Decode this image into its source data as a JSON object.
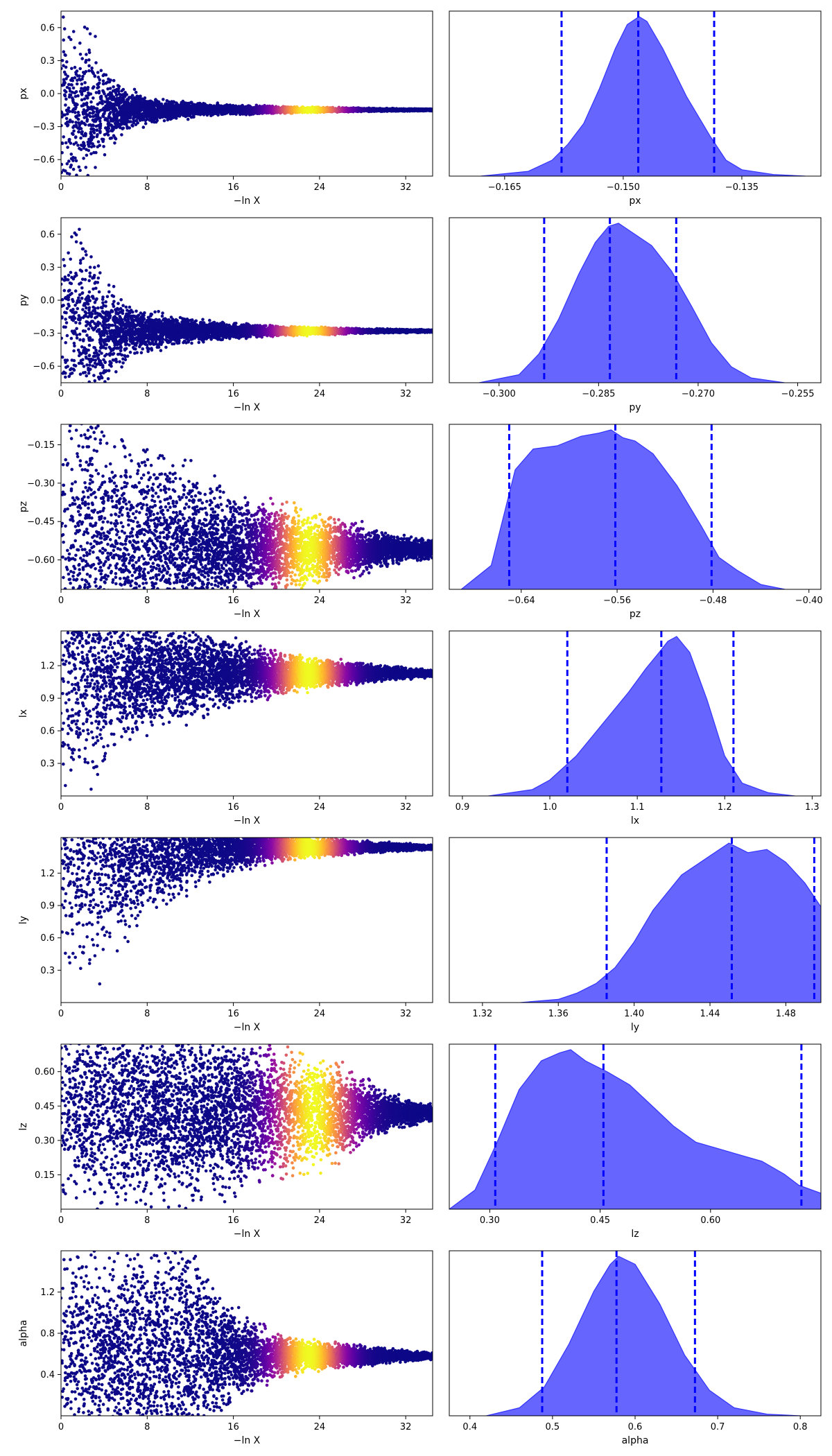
{
  "colors": {
    "posterior_fill": "#6666ff",
    "posterior_edge": "#3333ff",
    "quantile_line": "#0000ff",
    "trace_base": "#0d0887"
  },
  "chart_data": [
    {
      "type": "scatter",
      "param": "px",
      "ylabel": "px",
      "xlabel": "−ln X",
      "xlim": [
        0,
        34.5
      ],
      "ylim": [
        -0.75,
        0.75
      ],
      "xticks": [
        0,
        8,
        16,
        24,
        32
      ],
      "yticks": [
        -0.6,
        -0.3,
        0.0,
        0.3,
        0.6
      ],
      "ytick_labels": [
        "−0.6",
        "−0.3",
        "0.0",
        "0.3",
        "0.6"
      ],
      "envelope": {
        "x": [
          0,
          1,
          2,
          3,
          4,
          5,
          6,
          8,
          10,
          13,
          16,
          20,
          24,
          28,
          32,
          34.5
        ],
        "half": [
          0.75,
          0.75,
          0.7,
          0.55,
          0.38,
          0.26,
          0.18,
          0.11,
          0.08,
          0.055,
          0.04,
          0.028,
          0.02,
          0.015,
          0.01,
          0.008
        ]
      },
      "center": -0.148,
      "color_peak": 23,
      "color_width": 3
    },
    {
      "type": "area",
      "param": "px",
      "xlabel": "px",
      "xlim": [
        -0.172,
        -0.125
      ],
      "xticks": [
        -0.165,
        -0.15,
        -0.135
      ],
      "xtick_labels": [
        "−0.165",
        "−0.150",
        "−0.135"
      ],
      "density": {
        "x": [
          -0.168,
          -0.162,
          -0.159,
          -0.157,
          -0.155,
          -0.153,
          -0.151,
          -0.1495,
          -0.148,
          -0.147,
          -0.145,
          -0.142,
          -0.139,
          -0.137,
          -0.135,
          -0.131,
          -0.127
        ],
        "y": [
          0.0,
          0.03,
          0.1,
          0.2,
          0.33,
          0.55,
          0.8,
          0.95,
          1.0,
          0.97,
          0.8,
          0.5,
          0.25,
          0.1,
          0.04,
          0.01,
          0.0
        ]
      },
      "quantiles": [
        -0.1578,
        -0.1481,
        -0.1385
      ]
    },
    {
      "type": "scatter",
      "param": "py",
      "ylabel": "py",
      "xlabel": "−ln X",
      "xlim": [
        0,
        34.5
      ],
      "ylim": [
        -0.75,
        0.75
      ],
      "xticks": [
        0,
        8,
        16,
        24,
        32
      ],
      "yticks": [
        -0.6,
        -0.3,
        0.0,
        0.3,
        0.6
      ],
      "ytick_labels": [
        "−0.6",
        "−0.3",
        "0.0",
        "0.3",
        "0.6"
      ],
      "envelope": {
        "x": [
          0,
          1,
          2,
          3,
          4,
          5,
          6,
          8,
          10,
          13,
          16,
          20,
          24,
          28,
          32,
          34.5
        ],
        "half": [
          1.0,
          1.0,
          0.9,
          0.7,
          0.45,
          0.32,
          0.24,
          0.16,
          0.12,
          0.085,
          0.06,
          0.042,
          0.03,
          0.02,
          0.014,
          0.01
        ]
      },
      "center": -0.28,
      "color_peak": 23,
      "color_width": 3
    },
    {
      "type": "area",
      "param": "py",
      "xlabel": "py",
      "xlim": [
        -0.3075,
        -0.2515
      ],
      "xticks": [
        -0.3,
        -0.285,
        -0.27,
        -0.255
      ],
      "xtick_labels": [
        "−0.300",
        "−0.285",
        "−0.270",
        "−0.255"
      ],
      "density": {
        "x": [
          -0.303,
          -0.297,
          -0.294,
          -0.291,
          -0.288,
          -0.2855,
          -0.2835,
          -0.282,
          -0.2795,
          -0.277,
          -0.274,
          -0.271,
          -0.268,
          -0.265,
          -0.262,
          -0.257
        ],
        "y": [
          0.0,
          0.05,
          0.18,
          0.4,
          0.68,
          0.88,
          0.98,
          1.0,
          0.93,
          0.86,
          0.7,
          0.48,
          0.25,
          0.1,
          0.03,
          0.0
        ]
      },
      "quantiles": [
        -0.2932,
        -0.2833,
        -0.2733
      ]
    },
    {
      "type": "scatter",
      "param": "pz",
      "ylabel": "pz",
      "xlabel": "−ln X",
      "xlim": [
        0,
        34.5
      ],
      "ylim": [
        -0.715,
        -0.07
      ],
      "xticks": [
        0,
        8,
        16,
        24,
        32
      ],
      "yticks": [
        -0.6,
        -0.45,
        -0.3,
        -0.15
      ],
      "ytick_labels": [
        "−0.60",
        "−0.45",
        "−0.30",
        "−0.15"
      ],
      "envelope": {
        "x": [
          0,
          2,
          5,
          8,
          12,
          16,
          20,
          24,
          28,
          32,
          34.5
        ],
        "half": [
          0.7,
          0.58,
          0.46,
          0.38,
          0.28,
          0.2,
          0.16,
          0.12,
          0.08,
          0.04,
          0.03
        ]
      },
      "center": -0.56,
      "color_peak": 23,
      "color_width": 3.2
    },
    {
      "type": "area",
      "param": "pz",
      "xlabel": "pz",
      "xlim": [
        -0.7,
        -0.39
      ],
      "xticks": [
        -0.64,
        -0.56,
        -0.48,
        -0.4
      ],
      "xtick_labels": [
        "−0.64",
        "−0.56",
        "−0.48",
        "−0.40"
      ],
      "density": {
        "x": [
          -0.69,
          -0.665,
          -0.655,
          -0.645,
          -0.63,
          -0.61,
          -0.59,
          -0.575,
          -0.565,
          -0.555,
          -0.545,
          -0.53,
          -0.51,
          -0.49,
          -0.475,
          -0.46,
          -0.44,
          -0.42
        ],
        "y": [
          0.0,
          0.15,
          0.45,
          0.75,
          0.88,
          0.9,
          0.96,
          0.98,
          1.0,
          0.95,
          0.93,
          0.85,
          0.65,
          0.4,
          0.2,
          0.12,
          0.03,
          0.0
        ]
      },
      "quantiles": [
        -0.65,
        -0.5615,
        -0.4812
      ]
    },
    {
      "type": "scatter",
      "param": "lx",
      "ylabel": "lx",
      "xlabel": "−ln X",
      "xlim": [
        0,
        34.5
      ],
      "ylim": [
        0.0,
        1.52
      ],
      "xticks": [
        0,
        8,
        16,
        24,
        32
      ],
      "yticks": [
        0.3,
        0.6,
        0.9,
        1.2
      ],
      "ytick_labels": [
        "0.3",
        "0.6",
        "0.9",
        "1.2"
      ],
      "envelope": {
        "x": [
          0,
          2,
          5,
          8,
          12,
          16,
          20,
          24,
          28,
          32,
          34.5
        ],
        "half": [
          1.2,
          1.0,
          0.7,
          0.5,
          0.36,
          0.26,
          0.18,
          0.12,
          0.08,
          0.045,
          0.03
        ]
      },
      "center": 1.13,
      "color_peak": 23,
      "color_width": 3
    },
    {
      "type": "area",
      "param": "lx",
      "xlabel": "lx",
      "xlim": [
        0.885,
        1.31
      ],
      "xticks": [
        0.9,
        1.0,
        1.1,
        1.2,
        1.3
      ],
      "xtick_labels": [
        "0.9",
        "1.0",
        "1.1",
        "1.2",
        "1.3"
      ],
      "density": {
        "x": [
          0.93,
          0.98,
          1.0,
          1.03,
          1.06,
          1.09,
          1.11,
          1.125,
          1.135,
          1.145,
          1.16,
          1.18,
          1.2,
          1.22,
          1.25,
          1.28
        ],
        "y": [
          0.0,
          0.04,
          0.1,
          0.25,
          0.45,
          0.65,
          0.8,
          0.9,
          0.97,
          1.0,
          0.9,
          0.6,
          0.25,
          0.08,
          0.02,
          0.0
        ]
      },
      "quantiles": [
        1.02,
        1.1275,
        1.21
      ]
    },
    {
      "type": "scatter",
      "param": "ly",
      "ylabel": "ly",
      "xlabel": "−ln X",
      "xlim": [
        0,
        34.5
      ],
      "ylim": [
        0.0,
        1.53
      ],
      "xticks": [
        0,
        8,
        16,
        24,
        32
      ],
      "yticks": [
        0.3,
        0.6,
        0.9,
        1.2
      ],
      "ytick_labels": [
        "0.3",
        "0.6",
        "0.9",
        "1.2"
      ],
      "envelope": {
        "x": [
          0,
          2,
          5,
          8,
          12,
          16,
          20,
          24,
          28,
          32,
          34.5
        ],
        "half": [
          1.3,
          1.1,
          0.8,
          0.58,
          0.36,
          0.2,
          0.12,
          0.08,
          0.05,
          0.03,
          0.02
        ]
      },
      "center": 1.44,
      "color_peak": 23,
      "color_width": 3
    },
    {
      "type": "area",
      "param": "ly",
      "xlabel": "ly",
      "xlim": [
        1.3025,
        1.4985
      ],
      "xticks": [
        1.32,
        1.36,
        1.4,
        1.44,
        1.48
      ],
      "xtick_labels": [
        "1.32",
        "1.36",
        "1.40",
        "1.44",
        "1.48"
      ],
      "density": {
        "x": [
          1.34,
          1.36,
          1.37,
          1.38,
          1.39,
          1.4,
          1.41,
          1.425,
          1.44,
          1.45,
          1.46,
          1.47,
          1.48,
          1.49,
          1.4985
        ],
        "y": [
          0.0,
          0.02,
          0.06,
          0.12,
          0.22,
          0.38,
          0.58,
          0.8,
          0.92,
          1.0,
          0.94,
          0.96,
          0.88,
          0.75,
          0.6
        ]
      },
      "quantiles": [
        1.3855,
        1.4515,
        1.495
      ]
    },
    {
      "type": "scatter",
      "param": "lz",
      "ylabel": "lz",
      "xlabel": "−ln X",
      "xlim": [
        0,
        34.5
      ],
      "ylim": [
        0.0,
        0.72
      ],
      "xticks": [
        0,
        8,
        16,
        24,
        32
      ],
      "yticks": [
        0.15,
        0.3,
        0.45,
        0.6
      ],
      "ytick_labels": [
        "0.15",
        "0.30",
        "0.45",
        "0.60"
      ],
      "envelope": {
        "x": [
          0,
          5,
          10,
          16,
          20,
          24,
          28,
          32,
          34.5
        ],
        "half": [
          0.45,
          0.4,
          0.36,
          0.3,
          0.26,
          0.21,
          0.13,
          0.05,
          0.03
        ]
      },
      "center": 0.42,
      "color_peak": 23.5,
      "color_width": 3.5
    },
    {
      "type": "area",
      "param": "lz",
      "xlabel": "lz",
      "xlim": [
        0.245,
        0.75
      ],
      "xticks": [
        0.3,
        0.45,
        0.6
      ],
      "xtick_labels": [
        "0.30",
        "0.45",
        "0.60"
      ],
      "density": {
        "x": [
          0.245,
          0.28,
          0.31,
          0.34,
          0.37,
          0.395,
          0.41,
          0.43,
          0.46,
          0.49,
          0.52,
          0.55,
          0.58,
          0.61,
          0.64,
          0.67,
          0.7,
          0.72,
          0.75
        ],
        "y": [
          0.0,
          0.12,
          0.42,
          0.75,
          0.93,
          0.98,
          1.0,
          0.93,
          0.86,
          0.78,
          0.65,
          0.52,
          0.42,
          0.38,
          0.34,
          0.3,
          0.22,
          0.15,
          0.1
        ]
      },
      "quantiles": [
        0.3075,
        0.4545,
        0.7235
      ]
    },
    {
      "type": "scatter",
      "param": "alpha",
      "ylabel": "alpha",
      "xlabel": "−ln X",
      "xlim": [
        0,
        34.5
      ],
      "ylim": [
        0.0,
        1.6
      ],
      "xticks": [
        0,
        8,
        16,
        24,
        32
      ],
      "yticks": [
        0.4,
        0.8,
        1.2
      ],
      "ytick_labels": [
        "0.4",
        "0.8",
        "1.2"
      ],
      "envelope": {
        "x": [
          0,
          5,
          10,
          12,
          14,
          16,
          20,
          24,
          28,
          32,
          34.5
        ],
        "half": [
          1.0,
          1.0,
          1.0,
          0.95,
          0.7,
          0.4,
          0.2,
          0.12,
          0.08,
          0.045,
          0.03
        ]
      },
      "center": 0.58,
      "color_peak": 23,
      "color_width": 3
    },
    {
      "type": "area",
      "param": "alpha",
      "xlabel": "alpha",
      "xlim": [
        0.375,
        0.825
      ],
      "xticks": [
        0.4,
        0.5,
        0.6,
        0.7,
        0.8
      ],
      "xtick_labels": [
        "0.4",
        "0.5",
        "0.6",
        "0.7",
        "0.8"
      ],
      "density": {
        "x": [
          0.42,
          0.46,
          0.49,
          0.52,
          0.55,
          0.57,
          0.58,
          0.6,
          0.63,
          0.66,
          0.69,
          0.72,
          0.76,
          0.8
        ],
        "y": [
          0.0,
          0.05,
          0.18,
          0.45,
          0.78,
          0.95,
          1.0,
          0.95,
          0.7,
          0.38,
          0.16,
          0.05,
          0.01,
          0.0
        ]
      },
      "quantiles": [
        0.4875,
        0.5775,
        0.6725
      ]
    }
  ]
}
